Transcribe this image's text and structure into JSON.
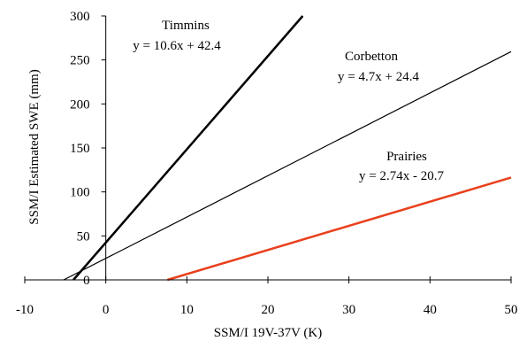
{
  "chart_data": {
    "type": "line",
    "xlabel": "SSM/I 19V-37V (K)",
    "ylabel": "SSM/I Estimated SWE (mm)",
    "xlim": [
      -10,
      50
    ],
    "ylim": [
      0,
      300
    ],
    "x_ticks": [
      "-10",
      "0",
      "10",
      "20",
      "30",
      "40",
      "50"
    ],
    "y_ticks": [
      "0",
      "50",
      "100",
      "150",
      "200",
      "250",
      "300"
    ],
    "grid": false,
    "legend": "none",
    "series": [
      {
        "name": "Timmins",
        "equation": "y = 10.6x + 42.4",
        "slope": 10.6,
        "intercept": 42.4,
        "x": [
          -4.0,
          24.3
        ],
        "y": [
          0,
          300
        ],
        "color": "#000000"
      },
      {
        "name": "Corbetton",
        "equation": "y = 4.7x + 24.4",
        "slope": 4.7,
        "intercept": 24.4,
        "x": [
          -5.2,
          50
        ],
        "y": [
          0,
          259.4
        ],
        "color": "#000000"
      },
      {
        "name": "Prairies",
        "equation": "y = 2.74x - 20.7",
        "slope": 2.74,
        "intercept": -20.7,
        "x": [
          7.6,
          50
        ],
        "y": [
          0,
          116.3
        ],
        "color": "#e8401c"
      }
    ]
  }
}
